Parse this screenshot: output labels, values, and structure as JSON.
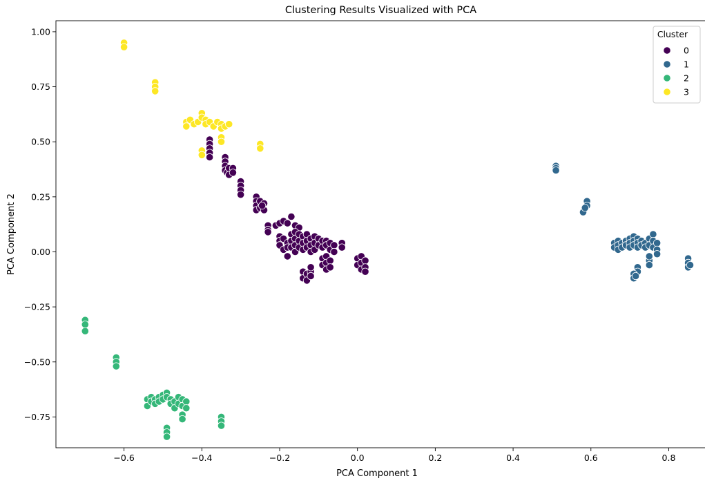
{
  "chart_data": {
    "type": "scatter",
    "title": "Clustering Results Visualized with PCA",
    "xlabel": "PCA Component 1",
    "ylabel": "PCA Component 2",
    "xlim": [
      -0.775,
      0.895
    ],
    "ylim": [
      -0.89,
      1.05
    ],
    "xticks": [
      -0.6,
      -0.4,
      -0.2,
      0.0,
      0.2,
      0.4,
      0.6,
      0.8
    ],
    "xtick_labels": [
      "−0.6",
      "−0.4",
      "−0.2",
      "0.0",
      "0.2",
      "0.4",
      "0.6",
      "0.8"
    ],
    "yticks": [
      -0.75,
      -0.5,
      -0.25,
      0.0,
      0.25,
      0.5,
      0.75,
      1.0
    ],
    "ytick_labels": [
      "−0.75",
      "−0.50",
      "−0.25",
      "0.00",
      "0.25",
      "0.50",
      "0.75",
      "1.00"
    ],
    "grid": false,
    "legend": {
      "title": "Cluster",
      "position": "top-right"
    },
    "series": [
      {
        "name": "0",
        "color": "#440154",
        "points": [
          [
            -0.38,
            0.51
          ],
          [
            -0.38,
            0.49
          ],
          [
            -0.38,
            0.47
          ],
          [
            -0.38,
            0.45
          ],
          [
            -0.38,
            0.43
          ],
          [
            -0.34,
            0.43
          ],
          [
            -0.34,
            0.41
          ],
          [
            -0.34,
            0.39
          ],
          [
            -0.34,
            0.37
          ],
          [
            -0.335,
            0.36
          ],
          [
            -0.33,
            0.38
          ],
          [
            -0.33,
            0.35
          ],
          [
            -0.32,
            0.38
          ],
          [
            -0.32,
            0.36
          ],
          [
            -0.3,
            0.32
          ],
          [
            -0.3,
            0.3
          ],
          [
            -0.3,
            0.28
          ],
          [
            -0.3,
            0.26
          ],
          [
            -0.26,
            0.25
          ],
          [
            -0.26,
            0.23
          ],
          [
            -0.26,
            0.21
          ],
          [
            -0.26,
            0.19
          ],
          [
            -0.25,
            0.23
          ],
          [
            -0.25,
            0.2
          ],
          [
            -0.24,
            0.22
          ],
          [
            -0.24,
            0.19
          ],
          [
            -0.245,
            0.21
          ],
          [
            -0.23,
            0.12
          ],
          [
            -0.23,
            0.1
          ],
          [
            -0.23,
            0.09
          ],
          [
            -0.21,
            0.12
          ],
          [
            -0.2,
            0.13
          ],
          [
            -0.19,
            0.14
          ],
          [
            -0.18,
            0.13
          ],
          [
            -0.17,
            0.16
          ],
          [
            -0.16,
            0.12
          ],
          [
            -0.15,
            0.11
          ],
          [
            -0.2,
            0.07
          ],
          [
            -0.2,
            0.05
          ],
          [
            -0.2,
            0.03
          ],
          [
            -0.19,
            0.01
          ],
          [
            -0.19,
            0.06
          ],
          [
            -0.18,
            0.04
          ],
          [
            -0.18,
            0.02
          ],
          [
            -0.18,
            -0.02
          ],
          [
            -0.17,
            0.08
          ],
          [
            -0.17,
            0.05
          ],
          [
            -0.17,
            0.02
          ],
          [
            -0.16,
            0.09
          ],
          [
            -0.16,
            0.06
          ],
          [
            -0.16,
            0.03
          ],
          [
            -0.16,
            0.0
          ],
          [
            -0.15,
            0.08
          ],
          [
            -0.15,
            0.05
          ],
          [
            -0.15,
            0.02
          ],
          [
            -0.14,
            0.07
          ],
          [
            -0.14,
            0.04
          ],
          [
            -0.14,
            0.01
          ],
          [
            -0.13,
            0.08
          ],
          [
            -0.13,
            0.05
          ],
          [
            -0.13,
            0.02
          ],
          [
            -0.12,
            0.06
          ],
          [
            -0.12,
            0.03
          ],
          [
            -0.12,
            0.0
          ],
          [
            -0.11,
            0.07
          ],
          [
            -0.11,
            0.04
          ],
          [
            -0.11,
            0.01
          ],
          [
            -0.1,
            0.06
          ],
          [
            -0.1,
            0.03
          ],
          [
            -0.09,
            0.05
          ],
          [
            -0.09,
            0.02
          ],
          [
            -0.08,
            0.05
          ],
          [
            -0.08,
            0.03
          ],
          [
            -0.07,
            0.04
          ],
          [
            -0.07,
            0.01
          ],
          [
            -0.06,
            0.03
          ],
          [
            -0.06,
            0.0
          ],
          [
            -0.09,
            -0.03
          ],
          [
            -0.09,
            -0.06
          ],
          [
            -0.08,
            -0.02
          ],
          [
            -0.08,
            -0.05
          ],
          [
            -0.08,
            -0.08
          ],
          [
            -0.07,
            -0.04
          ],
          [
            -0.07,
            -0.07
          ],
          [
            -0.04,
            0.04
          ],
          [
            -0.04,
            0.02
          ],
          [
            -0.14,
            -0.09
          ],
          [
            -0.14,
            -0.12
          ],
          [
            -0.13,
            -0.1
          ],
          [
            -0.13,
            -0.13
          ],
          [
            -0.12,
            -0.09
          ],
          [
            -0.12,
            -0.11
          ],
          [
            -0.12,
            -0.07
          ],
          [
            0.0,
            -0.03
          ],
          [
            0.0,
            -0.06
          ],
          [
            0.01,
            -0.02
          ],
          [
            0.01,
            -0.05
          ],
          [
            0.01,
            -0.08
          ],
          [
            0.02,
            -0.04
          ],
          [
            0.02,
            -0.07
          ],
          [
            0.02,
            -0.09
          ]
        ]
      },
      {
        "name": "1",
        "color": "#31688e",
        "points": [
          [
            0.51,
            0.39
          ],
          [
            0.51,
            0.38
          ],
          [
            0.51,
            0.37
          ],
          [
            0.59,
            0.23
          ],
          [
            0.59,
            0.21
          ],
          [
            0.58,
            0.18
          ],
          [
            0.585,
            0.2
          ],
          [
            0.66,
            0.04
          ],
          [
            0.66,
            0.02
          ],
          [
            0.67,
            0.05
          ],
          [
            0.67,
            0.03
          ],
          [
            0.67,
            0.01
          ],
          [
            0.68,
            0.04
          ],
          [
            0.68,
            0.02
          ],
          [
            0.69,
            0.05
          ],
          [
            0.69,
            0.03
          ],
          [
            0.7,
            0.06
          ],
          [
            0.7,
            0.04
          ],
          [
            0.7,
            0.02
          ],
          [
            0.71,
            0.07
          ],
          [
            0.71,
            0.05
          ],
          [
            0.71,
            0.03
          ],
          [
            0.72,
            0.06
          ],
          [
            0.72,
            0.04
          ],
          [
            0.72,
            0.02
          ],
          [
            0.73,
            0.05
          ],
          [
            0.73,
            0.03
          ],
          [
            0.74,
            0.04
          ],
          [
            0.74,
            0.02
          ],
          [
            0.75,
            0.06
          ],
          [
            0.75,
            0.03
          ],
          [
            0.76,
            0.08
          ],
          [
            0.76,
            0.05
          ],
          [
            0.76,
            0.02
          ],
          [
            0.77,
            0.04
          ],
          [
            0.77,
            0.01
          ],
          [
            0.77,
            -0.01
          ],
          [
            0.72,
            -0.07
          ],
          [
            0.72,
            -0.09
          ],
          [
            0.71,
            -0.1
          ],
          [
            0.71,
            -0.12
          ],
          [
            0.715,
            -0.11
          ],
          [
            0.75,
            -0.04
          ],
          [
            0.75,
            -0.06
          ],
          [
            0.75,
            -0.02
          ],
          [
            0.85,
            -0.03
          ],
          [
            0.85,
            -0.05
          ],
          [
            0.85,
            -0.07
          ],
          [
            0.855,
            -0.06
          ]
        ]
      },
      {
        "name": "2",
        "color": "#35b779",
        "points": [
          [
            -0.7,
            -0.31
          ],
          [
            -0.7,
            -0.33
          ],
          [
            -0.7,
            -0.36
          ],
          [
            -0.62,
            -0.48
          ],
          [
            -0.62,
            -0.5
          ],
          [
            -0.62,
            -0.52
          ],
          [
            -0.54,
            -0.67
          ],
          [
            -0.54,
            -0.7
          ],
          [
            -0.53,
            -0.66
          ],
          [
            -0.53,
            -0.68
          ],
          [
            -0.52,
            -0.67
          ],
          [
            -0.52,
            -0.69
          ],
          [
            -0.51,
            -0.66
          ],
          [
            -0.51,
            -0.68
          ],
          [
            -0.5,
            -0.65
          ],
          [
            -0.5,
            -0.67
          ],
          [
            -0.49,
            -0.64
          ],
          [
            -0.49,
            -0.66
          ],
          [
            -0.48,
            -0.67
          ],
          [
            -0.48,
            -0.69
          ],
          [
            -0.47,
            -0.68
          ],
          [
            -0.47,
            -0.71
          ],
          [
            -0.46,
            -0.66
          ],
          [
            -0.46,
            -0.69
          ],
          [
            -0.45,
            -0.67
          ],
          [
            -0.45,
            -0.7
          ],
          [
            -0.44,
            -0.68
          ],
          [
            -0.44,
            -0.71
          ],
          [
            -0.45,
            -0.74
          ],
          [
            -0.45,
            -0.76
          ],
          [
            -0.49,
            -0.8
          ],
          [
            -0.49,
            -0.82
          ],
          [
            -0.49,
            -0.84
          ],
          [
            -0.35,
            -0.75
          ],
          [
            -0.35,
            -0.77
          ],
          [
            -0.35,
            -0.79
          ]
        ]
      },
      {
        "name": "3",
        "color": "#fde725",
        "points": [
          [
            -0.6,
            0.95
          ],
          [
            -0.6,
            0.93
          ],
          [
            -0.52,
            0.77
          ],
          [
            -0.52,
            0.75
          ],
          [
            -0.52,
            0.73
          ],
          [
            -0.44,
            0.59
          ],
          [
            -0.44,
            0.57
          ],
          [
            -0.43,
            0.6
          ],
          [
            -0.42,
            0.58
          ],
          [
            -0.41,
            0.59
          ],
          [
            -0.4,
            0.63
          ],
          [
            -0.4,
            0.61
          ],
          [
            -0.39,
            0.6
          ],
          [
            -0.39,
            0.58
          ],
          [
            -0.38,
            0.59
          ],
          [
            -0.37,
            0.57
          ],
          [
            -0.36,
            0.59
          ],
          [
            -0.35,
            0.58
          ],
          [
            -0.35,
            0.56
          ],
          [
            -0.34,
            0.57
          ],
          [
            -0.33,
            0.58
          ],
          [
            -0.35,
            0.52
          ],
          [
            -0.35,
            0.5
          ],
          [
            -0.4,
            0.46
          ],
          [
            -0.4,
            0.44
          ],
          [
            -0.25,
            0.49
          ],
          [
            -0.25,
            0.47
          ]
        ]
      }
    ]
  }
}
